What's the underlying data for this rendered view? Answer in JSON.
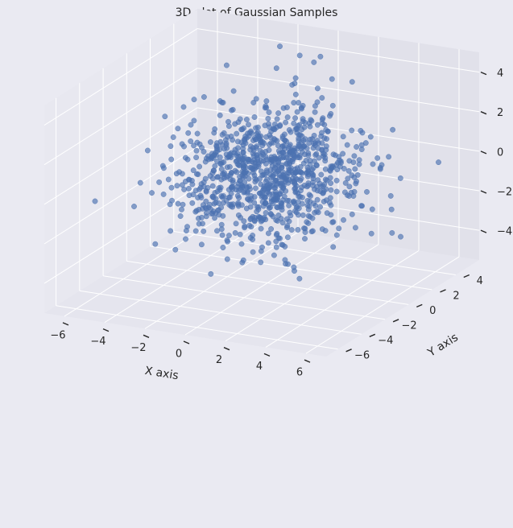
{
  "chart_data": {
    "type": "scatter",
    "projection": "3d",
    "title": "3D plot of Gaussian Samples",
    "xlabel": "X axis",
    "ylabel": "Y axis",
    "zlabel": "",
    "xlim": [
      -7,
      7
    ],
    "ylim": [
      -7,
      6
    ],
    "zlim": [
      -5.5,
      5
    ],
    "xticks": [
      -6,
      -4,
      -2,
      0,
      2,
      4,
      6
    ],
    "yticks": [
      -6,
      -4,
      -2,
      0,
      2,
      4
    ],
    "zticks": [
      -4,
      -2,
      0,
      2,
      4
    ],
    "grid": true,
    "marker_color": "#4c72b0",
    "background_color": "#eaeaf2",
    "distribution": {
      "kind": "gaussian",
      "n_points": 1000,
      "mean": [
        0,
        0,
        0
      ],
      "std": [
        2,
        2,
        1.5
      ]
    }
  }
}
